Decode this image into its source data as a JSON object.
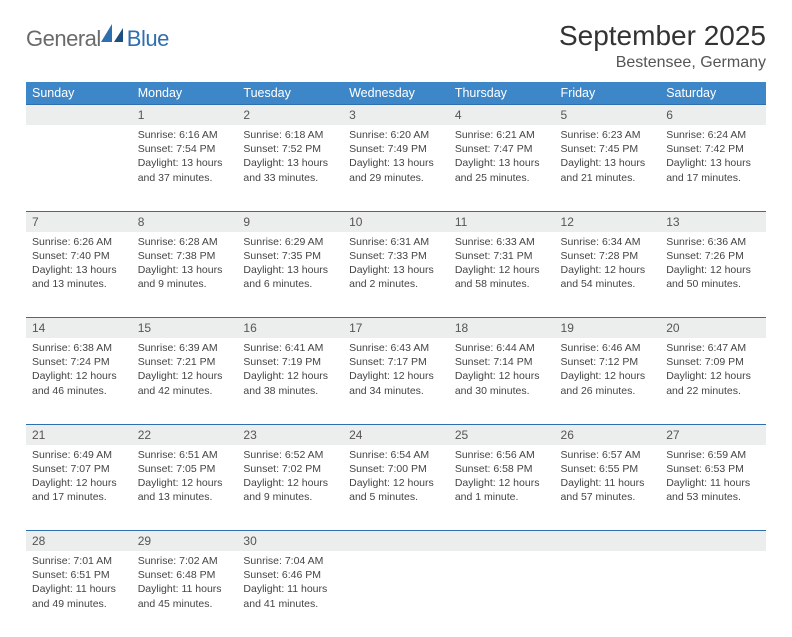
{
  "brand": {
    "part1": "General",
    "part2": "Blue"
  },
  "title": "September 2025",
  "location": "Bestensee, Germany",
  "header_bg": "#3d87c9",
  "row_divider": "#2f6fb0",
  "day_num_bg": "#eceded",
  "weekdays": [
    "Sunday",
    "Monday",
    "Tuesday",
    "Wednesday",
    "Thursday",
    "Friday",
    "Saturday"
  ],
  "weeks": [
    {
      "nums": [
        "",
        "1",
        "2",
        "3",
        "4",
        "5",
        "6"
      ],
      "cells": [
        null,
        {
          "sunrise": "Sunrise: 6:16 AM",
          "sunset": "Sunset: 7:54 PM",
          "daylight": "Daylight: 13 hours and 37 minutes."
        },
        {
          "sunrise": "Sunrise: 6:18 AM",
          "sunset": "Sunset: 7:52 PM",
          "daylight": "Daylight: 13 hours and 33 minutes."
        },
        {
          "sunrise": "Sunrise: 6:20 AM",
          "sunset": "Sunset: 7:49 PM",
          "daylight": "Daylight: 13 hours and 29 minutes."
        },
        {
          "sunrise": "Sunrise: 6:21 AM",
          "sunset": "Sunset: 7:47 PM",
          "daylight": "Daylight: 13 hours and 25 minutes."
        },
        {
          "sunrise": "Sunrise: 6:23 AM",
          "sunset": "Sunset: 7:45 PM",
          "daylight": "Daylight: 13 hours and 21 minutes."
        },
        {
          "sunrise": "Sunrise: 6:24 AM",
          "sunset": "Sunset: 7:42 PM",
          "daylight": "Daylight: 13 hours and 17 minutes."
        }
      ]
    },
    {
      "nums": [
        "7",
        "8",
        "9",
        "10",
        "11",
        "12",
        "13"
      ],
      "cells": [
        {
          "sunrise": "Sunrise: 6:26 AM",
          "sunset": "Sunset: 7:40 PM",
          "daylight": "Daylight: 13 hours and 13 minutes."
        },
        {
          "sunrise": "Sunrise: 6:28 AM",
          "sunset": "Sunset: 7:38 PM",
          "daylight": "Daylight: 13 hours and 9 minutes."
        },
        {
          "sunrise": "Sunrise: 6:29 AM",
          "sunset": "Sunset: 7:35 PM",
          "daylight": "Daylight: 13 hours and 6 minutes."
        },
        {
          "sunrise": "Sunrise: 6:31 AM",
          "sunset": "Sunset: 7:33 PM",
          "daylight": "Daylight: 13 hours and 2 minutes."
        },
        {
          "sunrise": "Sunrise: 6:33 AM",
          "sunset": "Sunset: 7:31 PM",
          "daylight": "Daylight: 12 hours and 58 minutes."
        },
        {
          "sunrise": "Sunrise: 6:34 AM",
          "sunset": "Sunset: 7:28 PM",
          "daylight": "Daylight: 12 hours and 54 minutes."
        },
        {
          "sunrise": "Sunrise: 6:36 AM",
          "sunset": "Sunset: 7:26 PM",
          "daylight": "Daylight: 12 hours and 50 minutes."
        }
      ]
    },
    {
      "nums": [
        "14",
        "15",
        "16",
        "17",
        "18",
        "19",
        "20"
      ],
      "cells": [
        {
          "sunrise": "Sunrise: 6:38 AM",
          "sunset": "Sunset: 7:24 PM",
          "daylight": "Daylight: 12 hours and 46 minutes."
        },
        {
          "sunrise": "Sunrise: 6:39 AM",
          "sunset": "Sunset: 7:21 PM",
          "daylight": "Daylight: 12 hours and 42 minutes."
        },
        {
          "sunrise": "Sunrise: 6:41 AM",
          "sunset": "Sunset: 7:19 PM",
          "daylight": "Daylight: 12 hours and 38 minutes."
        },
        {
          "sunrise": "Sunrise: 6:43 AM",
          "sunset": "Sunset: 7:17 PM",
          "daylight": "Daylight: 12 hours and 34 minutes."
        },
        {
          "sunrise": "Sunrise: 6:44 AM",
          "sunset": "Sunset: 7:14 PM",
          "daylight": "Daylight: 12 hours and 30 minutes."
        },
        {
          "sunrise": "Sunrise: 6:46 AM",
          "sunset": "Sunset: 7:12 PM",
          "daylight": "Daylight: 12 hours and 26 minutes."
        },
        {
          "sunrise": "Sunrise: 6:47 AM",
          "sunset": "Sunset: 7:09 PM",
          "daylight": "Daylight: 12 hours and 22 minutes."
        }
      ]
    },
    {
      "nums": [
        "21",
        "22",
        "23",
        "24",
        "25",
        "26",
        "27"
      ],
      "cells": [
        {
          "sunrise": "Sunrise: 6:49 AM",
          "sunset": "Sunset: 7:07 PM",
          "daylight": "Daylight: 12 hours and 17 minutes."
        },
        {
          "sunrise": "Sunrise: 6:51 AM",
          "sunset": "Sunset: 7:05 PM",
          "daylight": "Daylight: 12 hours and 13 minutes."
        },
        {
          "sunrise": "Sunrise: 6:52 AM",
          "sunset": "Sunset: 7:02 PM",
          "daylight": "Daylight: 12 hours and 9 minutes."
        },
        {
          "sunrise": "Sunrise: 6:54 AM",
          "sunset": "Sunset: 7:00 PM",
          "daylight": "Daylight: 12 hours and 5 minutes."
        },
        {
          "sunrise": "Sunrise: 6:56 AM",
          "sunset": "Sunset: 6:58 PM",
          "daylight": "Daylight: 12 hours and 1 minute."
        },
        {
          "sunrise": "Sunrise: 6:57 AM",
          "sunset": "Sunset: 6:55 PM",
          "daylight": "Daylight: 11 hours and 57 minutes."
        },
        {
          "sunrise": "Sunrise: 6:59 AM",
          "sunset": "Sunset: 6:53 PM",
          "daylight": "Daylight: 11 hours and 53 minutes."
        }
      ]
    },
    {
      "nums": [
        "28",
        "29",
        "30",
        "",
        "",
        "",
        ""
      ],
      "cells": [
        {
          "sunrise": "Sunrise: 7:01 AM",
          "sunset": "Sunset: 6:51 PM",
          "daylight": "Daylight: 11 hours and 49 minutes."
        },
        {
          "sunrise": "Sunrise: 7:02 AM",
          "sunset": "Sunset: 6:48 PM",
          "daylight": "Daylight: 11 hours and 45 minutes."
        },
        {
          "sunrise": "Sunrise: 7:04 AM",
          "sunset": "Sunset: 6:46 PM",
          "daylight": "Daylight: 11 hours and 41 minutes."
        },
        null,
        null,
        null,
        null
      ]
    }
  ]
}
